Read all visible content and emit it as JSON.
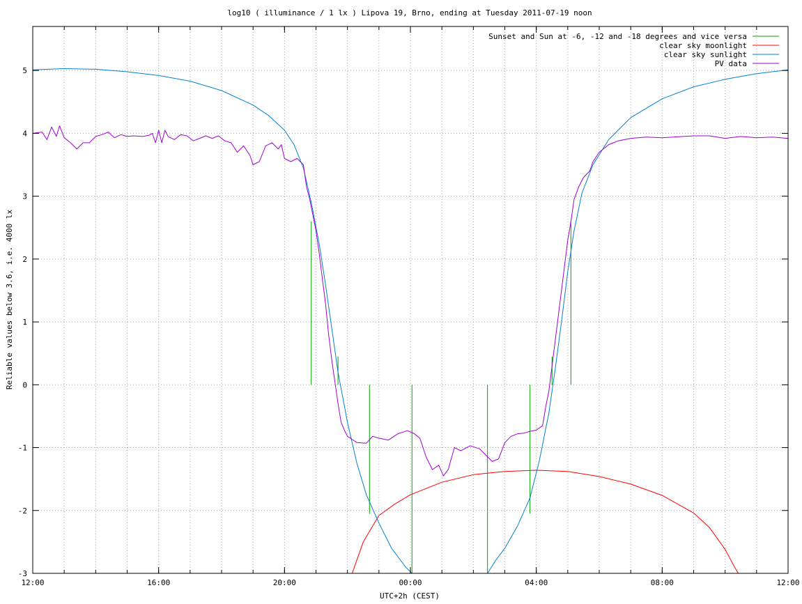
{
  "chart_data": {
    "type": "line",
    "title": "log10 ( illuminance / 1 lx ) Lipova 19, Brno, ending at Tuesday 2011-07-19 noon",
    "xlabel": "UTC+2h (CEST)",
    "ylabel": "Reliable values below 3.6, i.e. 4000 lx",
    "x_unit": "hours since 2011-07-18 12:00 (CEST)",
    "xlim": [
      0,
      24
    ],
    "ylim": [
      -3,
      5.7
    ],
    "x_ticks": [
      {
        "x": 0,
        "label": "12:00"
      },
      {
        "x": 4,
        "label": "16:00"
      },
      {
        "x": 8,
        "label": "20:00"
      },
      {
        "x": 12,
        "label": "00:00"
      },
      {
        "x": 16,
        "label": "04:00"
      },
      {
        "x": 20,
        "label": "08:00"
      },
      {
        "x": 24,
        "label": "12:00"
      }
    ],
    "y_ticks": [
      {
        "y": 5,
        "label": "5"
      },
      {
        "y": 4,
        "label": "4"
      },
      {
        "y": 3,
        "label": "3"
      },
      {
        "y": 2,
        "label": "2"
      },
      {
        "y": 1,
        "label": "1"
      },
      {
        "y": 0,
        "label": "0"
      },
      {
        "y": -1,
        "label": "-1"
      },
      {
        "y": -2,
        "label": "-2"
      },
      {
        "y": -3,
        "label": "-3"
      }
    ],
    "grid": true,
    "legend_position": "top-right",
    "series": [
      {
        "name": "Sunset and Sun at -6, -12 and -18 degrees and vice versa",
        "color": "#00a000",
        "style": "impulses",
        "points": [
          [
            8.85,
            2.6
          ],
          [
            9.7,
            0.45
          ],
          [
            10.7,
            -2.05
          ],
          [
            12.05,
            -3.0
          ],
          [
            14.45,
            -3.0
          ],
          [
            15.8,
            -2.05
          ],
          [
            16.5,
            0.45
          ],
          [
            17.1,
            2.6
          ]
        ]
      },
      {
        "name": "clear sky moonlight",
        "color": "#ff0000",
        "style": "line",
        "points": [
          [
            10.15,
            -3.0
          ],
          [
            10.5,
            -2.5
          ],
          [
            11.0,
            -2.08
          ],
          [
            11.5,
            -1.9
          ],
          [
            12.0,
            -1.75
          ],
          [
            13.0,
            -1.55
          ],
          [
            14.0,
            -1.43
          ],
          [
            15.0,
            -1.38
          ],
          [
            16.0,
            -1.36
          ],
          [
            17.0,
            -1.38
          ],
          [
            18.0,
            -1.46
          ],
          [
            19.0,
            -1.58
          ],
          [
            20.0,
            -1.76
          ],
          [
            21.0,
            -2.04
          ],
          [
            21.5,
            -2.27
          ],
          [
            22.0,
            -2.62
          ],
          [
            22.3,
            -2.9
          ],
          [
            22.42,
            -3.0
          ]
        ]
      },
      {
        "name": "clear sky sunlight",
        "color": "#0080d0",
        "style": "line",
        "points": [
          [
            0,
            5.01
          ],
          [
            1.0,
            5.03
          ],
          [
            2.0,
            5.02
          ],
          [
            3.0,
            4.98
          ],
          [
            4.0,
            4.92
          ],
          [
            5.0,
            4.83
          ],
          [
            6.0,
            4.68
          ],
          [
            7.0,
            4.45
          ],
          [
            7.5,
            4.28
          ],
          [
            8.0,
            4.05
          ],
          [
            8.3,
            3.82
          ],
          [
            8.6,
            3.45
          ],
          [
            8.85,
            2.9
          ],
          [
            9.1,
            2.25
          ],
          [
            9.3,
            1.6
          ],
          [
            9.5,
            0.9
          ],
          [
            9.7,
            0.2
          ],
          [
            10.0,
            -0.6
          ],
          [
            10.3,
            -1.25
          ],
          [
            10.6,
            -1.75
          ],
          [
            11.0,
            -2.2
          ],
          [
            11.4,
            -2.6
          ],
          [
            11.85,
            -2.9
          ],
          [
            12.05,
            -3.0
          ],
          [
            14.45,
            -3.0
          ],
          [
            14.7,
            -2.8
          ],
          [
            15.0,
            -2.6
          ],
          [
            15.4,
            -2.25
          ],
          [
            15.8,
            -1.8
          ],
          [
            16.1,
            -1.2
          ],
          [
            16.4,
            -0.45
          ],
          [
            16.6,
            0.25
          ],
          [
            16.8,
            1.0
          ],
          [
            17.0,
            1.8
          ],
          [
            17.2,
            2.45
          ],
          [
            17.45,
            3.05
          ],
          [
            17.8,
            3.5
          ],
          [
            18.3,
            3.9
          ],
          [
            19.0,
            4.25
          ],
          [
            20.0,
            4.55
          ],
          [
            21.0,
            4.74
          ],
          [
            22.0,
            4.86
          ],
          [
            23.0,
            4.95
          ],
          [
            24.0,
            5.01
          ]
        ]
      },
      {
        "name": "PV data",
        "color": "#a000d0",
        "style": "line",
        "points": [
          [
            0,
            4.0
          ],
          [
            0.3,
            4.02
          ],
          [
            0.45,
            3.9
          ],
          [
            0.6,
            4.1
          ],
          [
            0.75,
            3.95
          ],
          [
            0.85,
            4.12
          ],
          [
            1.0,
            3.93
          ],
          [
            1.2,
            3.85
          ],
          [
            1.4,
            3.75
          ],
          [
            1.6,
            3.85
          ],
          [
            1.8,
            3.85
          ],
          [
            2.0,
            3.95
          ],
          [
            2.2,
            3.98
          ],
          [
            2.4,
            4.02
          ],
          [
            2.6,
            3.93
          ],
          [
            2.8,
            3.98
          ],
          [
            3.0,
            3.95
          ],
          [
            3.2,
            3.96
          ],
          [
            3.5,
            3.95
          ],
          [
            3.7,
            3.97
          ],
          [
            3.8,
            4.0
          ],
          [
            3.9,
            3.85
          ],
          [
            4.0,
            4.05
          ],
          [
            4.1,
            3.85
          ],
          [
            4.2,
            4.05
          ],
          [
            4.3,
            3.95
          ],
          [
            4.5,
            3.9
          ],
          [
            4.7,
            3.98
          ],
          [
            4.9,
            3.96
          ],
          [
            5.1,
            3.88
          ],
          [
            5.3,
            3.92
          ],
          [
            5.5,
            3.96
          ],
          [
            5.7,
            3.92
          ],
          [
            5.9,
            3.96
          ],
          [
            6.1,
            3.88
          ],
          [
            6.3,
            3.85
          ],
          [
            6.5,
            3.7
          ],
          [
            6.7,
            3.8
          ],
          [
            6.9,
            3.65
          ],
          [
            7.0,
            3.5
          ],
          [
            7.2,
            3.55
          ],
          [
            7.4,
            3.8
          ],
          [
            7.6,
            3.85
          ],
          [
            7.8,
            3.75
          ],
          [
            7.9,
            3.82
          ],
          [
            8.0,
            3.6
          ],
          [
            8.2,
            3.55
          ],
          [
            8.4,
            3.6
          ],
          [
            8.5,
            3.55
          ],
          [
            8.6,
            3.5
          ],
          [
            8.7,
            3.15
          ],
          [
            8.8,
            2.95
          ],
          [
            8.9,
            2.7
          ],
          [
            9.0,
            2.45
          ],
          [
            9.1,
            2.1
          ],
          [
            9.2,
            1.7
          ],
          [
            9.3,
            1.3
          ],
          [
            9.4,
            0.8
          ],
          [
            9.5,
            0.4
          ],
          [
            9.6,
            0.05
          ],
          [
            9.7,
            -0.3
          ],
          [
            9.8,
            -0.6
          ],
          [
            9.9,
            -0.72
          ],
          [
            10.0,
            -0.82
          ],
          [
            10.3,
            -0.92
          ],
          [
            10.6,
            -0.93
          ],
          [
            10.8,
            -0.82
          ],
          [
            11.0,
            -0.85
          ],
          [
            11.3,
            -0.88
          ],
          [
            11.6,
            -0.78
          ],
          [
            11.9,
            -0.73
          ],
          [
            12.1,
            -0.77
          ],
          [
            12.3,
            -0.85
          ],
          [
            12.5,
            -1.15
          ],
          [
            12.7,
            -1.35
          ],
          [
            12.9,
            -1.28
          ],
          [
            13.05,
            -1.45
          ],
          [
            13.2,
            -1.35
          ],
          [
            13.4,
            -1.0
          ],
          [
            13.6,
            -1.05
          ],
          [
            13.9,
            -0.97
          ],
          [
            14.2,
            -1.02
          ],
          [
            14.4,
            -1.12
          ],
          [
            14.6,
            -1.22
          ],
          [
            14.8,
            -1.18
          ],
          [
            15.0,
            -0.92
          ],
          [
            15.2,
            -0.82
          ],
          [
            15.4,
            -0.78
          ],
          [
            15.6,
            -0.77
          ],
          [
            15.8,
            -0.74
          ],
          [
            16.0,
            -0.72
          ],
          [
            16.2,
            -0.65
          ],
          [
            16.3,
            -0.35
          ],
          [
            16.4,
            -0.1
          ],
          [
            16.5,
            0.3
          ],
          [
            16.6,
            0.7
          ],
          [
            16.7,
            1.1
          ],
          [
            16.8,
            1.5
          ],
          [
            16.9,
            1.9
          ],
          [
            17.0,
            2.3
          ],
          [
            17.1,
            2.6
          ],
          [
            17.2,
            2.95
          ],
          [
            17.35,
            3.15
          ],
          [
            17.5,
            3.3
          ],
          [
            17.6,
            3.35
          ],
          [
            17.7,
            3.4
          ],
          [
            17.8,
            3.55
          ],
          [
            18.0,
            3.7
          ],
          [
            18.3,
            3.82
          ],
          [
            18.6,
            3.88
          ],
          [
            19.0,
            3.92
          ],
          [
            19.5,
            3.94
          ],
          [
            20.0,
            3.93
          ],
          [
            21.0,
            3.96
          ],
          [
            21.5,
            3.96
          ],
          [
            22.0,
            3.92
          ],
          [
            22.5,
            3.95
          ],
          [
            23.0,
            3.93
          ],
          [
            23.5,
            3.94
          ],
          [
            24.0,
            3.92
          ]
        ]
      }
    ]
  }
}
